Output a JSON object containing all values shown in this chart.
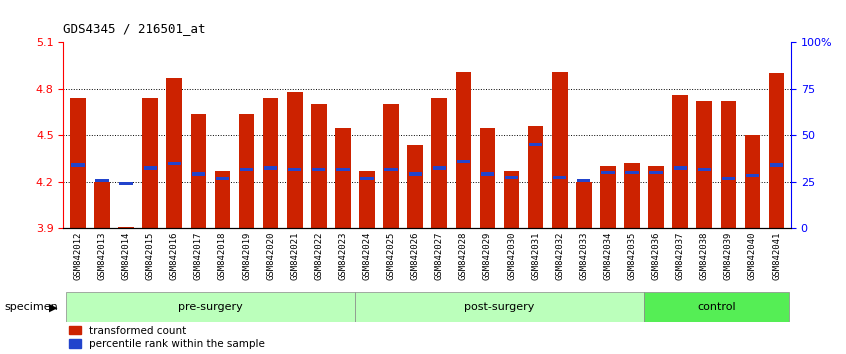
{
  "title": "GDS4345 / 216501_at",
  "samples": [
    "GSM842012",
    "GSM842013",
    "GSM842014",
    "GSM842015",
    "GSM842016",
    "GSM842017",
    "GSM842018",
    "GSM842019",
    "GSM842020",
    "GSM842021",
    "GSM842022",
    "GSM842023",
    "GSM842024",
    "GSM842025",
    "GSM842026",
    "GSM842027",
    "GSM842028",
    "GSM842029",
    "GSM842030",
    "GSM842031",
    "GSM842032",
    "GSM842033",
    "GSM842034",
    "GSM842035",
    "GSM842036",
    "GSM842037",
    "GSM842038",
    "GSM842039",
    "GSM842040",
    "GSM842041"
  ],
  "red_values": [
    4.74,
    4.2,
    3.91,
    4.74,
    4.87,
    4.64,
    4.27,
    4.64,
    4.74,
    4.78,
    4.7,
    4.55,
    4.27,
    4.7,
    4.44,
    4.74,
    4.91,
    4.55,
    4.27,
    4.56,
    4.91,
    4.2,
    4.3,
    4.32,
    4.3,
    4.76,
    4.72,
    4.72,
    4.5,
    4.9
  ],
  "blue_values": [
    4.31,
    4.21,
    4.19,
    4.29,
    4.32,
    4.25,
    4.22,
    4.28,
    4.29,
    4.28,
    4.28,
    4.28,
    4.22,
    4.28,
    4.25,
    4.29,
    4.33,
    4.25,
    4.23,
    4.44,
    4.23,
    4.21,
    4.26,
    4.26,
    4.26,
    4.29,
    4.28,
    4.22,
    4.24,
    4.31
  ],
  "group_labels": [
    "pre-surgery",
    "post-surgery",
    "control"
  ],
  "group_starts": [
    0,
    12,
    24
  ],
  "group_ends": [
    12,
    24,
    30
  ],
  "group_colors": [
    "#bbffbb",
    "#bbffbb",
    "#55ee55"
  ],
  "ymin": 3.9,
  "ymax": 5.1,
  "yticks": [
    3.9,
    4.2,
    4.5,
    4.8,
    5.1
  ],
  "grid_lines": [
    4.2,
    4.5,
    4.8
  ],
  "right_ytick_pct": [
    0,
    25,
    50,
    75,
    100
  ],
  "right_ylabels": [
    "0",
    "25",
    "50",
    "75",
    "100%"
  ],
  "bar_color": "#cc2200",
  "blue_color": "#2244cc",
  "bar_width": 0.65,
  "legend_items": [
    "transformed count",
    "percentile rank within the sample"
  ]
}
